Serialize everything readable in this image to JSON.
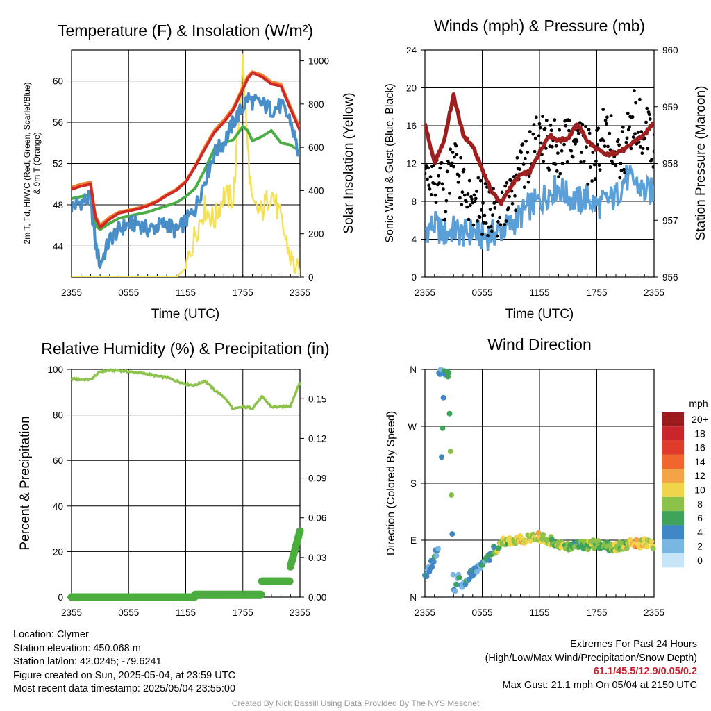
{
  "panels": {
    "temperature": {
      "title": "Temperature (F) & Insolation (W/m²)",
      "xlabel": "Time (UTC)",
      "ylabel_left_lines": [
        "2m T, Td, HI/WC (Red, Green, Scarlet/Blue)",
        "& 9m T (Orange)"
      ],
      "ylabel_right": "Solar Insolation (Yellow)"
    },
    "winds": {
      "title": "Winds (mph) & Pressure (mb)",
      "xlabel": "Time (UTC)",
      "ylabel_left": "Sonic Wind & Gust (Blue, Black)",
      "ylabel_right": "Station Pressure (Maroon)"
    },
    "humidity": {
      "title": "Relative Humidity (%) & Precipitation (in)",
      "ylabel_left": "Percent & Precipitation"
    },
    "direction": {
      "title": "Wind Direction",
      "ylabel_left": "Direction (Colored By Speed)",
      "legend_title": "mph",
      "legend_labels": [
        "20+",
        "18",
        "16",
        "14",
        "12",
        "10",
        "8",
        "6",
        "4",
        "2",
        "0"
      ],
      "legend_colors": [
        "#9b1b1e",
        "#c9252b",
        "#e13b2c",
        "#f0662e",
        "#f5a347",
        "#f0d44b",
        "#8cc24a",
        "#3fa35a",
        "#3f87c6",
        "#7ab6e2",
        "#c6e6f7"
      ]
    }
  },
  "info": {
    "location": "Location: Clymer",
    "elevation": "Station elevation: 450.068 m",
    "latlon": "Station lat/lon: 42.0245; -79.6241",
    "created": "Figure created on Sun, 2025-05-04, at 23:59 UTC",
    "recent": "Most recent data timestamp: 2025/05/04 23:55:00"
  },
  "extremes": {
    "heading": "Extremes For Past 24 Hours",
    "subheading": "(High/Low/Max Wind/Precipitation/Snow Depth)",
    "values": "61.1/45.5/12.9/0.05/0.2",
    "gust": "Max Gust: 21.1 mph On 05/04 at 2150 UTC"
  },
  "credit": "Created By Nick Bassill Using Data Provided By The NYS Mesonet",
  "colors": {
    "temp": "#d02a26",
    "temp9m": "#f4812f",
    "dewpoint": "#4aad45",
    "windchill": "#4a8ec8",
    "solar": "#f5e05a",
    "wind": "#5b9fd8",
    "gust": "#000000",
    "pressure": "#9e1f1f",
    "rh": "#8dc34b",
    "precip": "#4aad3e"
  },
  "chart_data": [
    {
      "type": "line",
      "title": "Temperature (F) & Insolation (W/m2)",
      "xlabel": "Time (UTC)",
      "x_ticks": [
        "2355",
        "0555",
        "1155",
        "1755",
        "2355"
      ],
      "ylim": [
        41,
        63
      ],
      "y_ticks": [
        44,
        48,
        52,
        56,
        60
      ],
      "y2lim": [
        0,
        1050
      ],
      "y2_ticks": [
        0,
        200,
        400,
        600,
        800,
        1000
      ],
      "x": [
        0,
        1,
        2,
        2.5,
        3,
        4,
        5,
        6,
        7,
        8,
        9,
        10,
        11,
        12,
        13,
        14,
        15,
        16,
        17,
        18,
        18.5,
        19,
        20,
        21,
        22,
        23,
        24
      ],
      "series": [
        {
          "name": "Red",
          "axis": "left",
          "values": [
            49.5,
            49.8,
            50.0,
            46.8,
            45.8,
            46.6,
            47.2,
            47.4,
            47.6,
            47.9,
            48.3,
            48.9,
            49.4,
            50.2,
            51.7,
            53.4,
            55.0,
            56.0,
            57.2,
            59.2,
            60.2,
            60.8,
            60.4,
            59.7,
            59.5,
            57.3,
            55.2
          ]
        },
        {
          "name": "Orange",
          "axis": "left",
          "values": [
            49.7,
            50.0,
            50.2,
            47.0,
            46.0,
            46.8,
            47.3,
            47.5,
            47.7,
            48.0,
            48.4,
            49.0,
            49.5,
            50.3,
            51.8,
            53.6,
            55.2,
            56.2,
            57.4,
            59.4,
            60.4,
            60.9,
            60.6,
            59.9,
            59.7,
            57.5,
            55.4
          ]
        },
        {
          "name": "Green",
          "axis": "left",
          "values": [
            48.6,
            48.8,
            49.0,
            46.0,
            45.6,
            46.2,
            46.7,
            46.9,
            47.1,
            47.3,
            47.6,
            47.9,
            48.2,
            48.8,
            49.6,
            51.4,
            53.4,
            54.0,
            54.3,
            55.6,
            55.2,
            54.2,
            54.6,
            55.2,
            54.0,
            53.8,
            53.2
          ]
        },
        {
          "name": "Blue",
          "axis": "left",
          "values": [
            47.8,
            48.3,
            48.6,
            44.2,
            42.2,
            44.6,
            45.6,
            46.1,
            46.2,
            45.6,
            45.9,
            46.2,
            45.4,
            46.4,
            47.6,
            50.4,
            53.0,
            54.0,
            56.0,
            57.4,
            58.4,
            58.0,
            57.8,
            57.2,
            57.6,
            56.2,
            52.4
          ]
        },
        {
          "name": "Yellow",
          "axis": "right",
          "values": [
            0,
            0,
            0,
            0,
            0,
            0,
            0,
            0,
            0,
            0,
            0,
            0,
            0,
            40,
            200,
            320,
            260,
            380,
            360,
            1000,
            600,
            320,
            300,
            400,
            260,
            90,
            0
          ]
        }
      ]
    },
    {
      "type": "line",
      "title": "Winds (mph) & Pressure (mb)",
      "xlabel": "Time (UTC)",
      "x_ticks": [
        "2355",
        "0555",
        "1155",
        "1755",
        "2355"
      ],
      "ylim": [
        0,
        24
      ],
      "y_ticks": [
        0,
        4,
        8,
        12,
        16,
        20,
        24
      ],
      "y2lim": [
        956,
        960
      ],
      "y2_ticks": [
        956,
        957,
        958,
        959,
        960
      ],
      "x": [
        0,
        1,
        2,
        3,
        4,
        5,
        6,
        7,
        8,
        9,
        10,
        11,
        12,
        13,
        14,
        15,
        16,
        17,
        18,
        19,
        20,
        21,
        22,
        23,
        24
      ],
      "series": [
        {
          "name": "Blue",
          "axis": "left",
          "values": [
            5.0,
            5.5,
            4.5,
            5.0,
            4.5,
            4.8,
            4.2,
            4.5,
            5.0,
            5.5,
            6.5,
            7.5,
            8.0,
            9.0,
            9.5,
            8.5,
            8.0,
            8.5,
            7.5,
            8.0,
            8.5,
            10.5,
            10.0,
            9.0,
            9.0
          ]
        },
        {
          "name": "Black",
          "axis": "left",
          "values": [
            9.5,
            11.0,
            8.5,
            13.5,
            10.0,
            7.8,
            7.5,
            7.0,
            7.5,
            8.5,
            11.0,
            13.0,
            14.5,
            14.0,
            13.5,
            15.0,
            15.5,
            12.5,
            13.5,
            15.5,
            13.0,
            14.0,
            17.0,
            15.5,
            13.5
          ]
        },
        {
          "name": "Maroon",
          "axis": "right",
          "values": [
            958.7,
            958.0,
            958.4,
            959.2,
            958.5,
            958.3,
            957.9,
            957.5,
            957.3,
            957.6,
            957.8,
            957.85,
            958.2,
            958.5,
            958.4,
            958.45,
            958.7,
            958.4,
            958.25,
            958.15,
            958.2,
            958.25,
            958.4,
            958.5,
            958.75
          ]
        }
      ]
    },
    {
      "type": "line",
      "title": "Relative Humidity (%) & Precipitation (in)",
      "x_ticks": [
        "2355",
        "0555",
        "1155",
        "1755",
        "2355"
      ],
      "ylim": [
        0,
        100
      ],
      "y_ticks": [
        0,
        20,
        40,
        60,
        80,
        100
      ],
      "y2lim": [
        0,
        0.1722
      ],
      "y2_ticks": [
        0.0,
        0.03,
        0.06,
        0.09,
        0.12,
        0.15
      ],
      "x": [
        0,
        1,
        2,
        3,
        4,
        5,
        6,
        7,
        8,
        9,
        10,
        11,
        12,
        13,
        14,
        15,
        16,
        17,
        18,
        19,
        20,
        21,
        22,
        23,
        24
      ],
      "series": [
        {
          "name": "RH",
          "axis": "left",
          "values": [
            96,
            95.5,
            95.5,
            99,
            99.5,
            99.5,
            99,
            98.5,
            98,
            97,
            96.5,
            95,
            93.5,
            93,
            95,
            91,
            88,
            82.5,
            83.5,
            83,
            88,
            83.5,
            83.5,
            84,
            94.5
          ]
        },
        {
          "name": "Precipitation",
          "axis": "right",
          "values": [
            0,
            0,
            0,
            0,
            0,
            0,
            0,
            0,
            0,
            0,
            0,
            0,
            0,
            0.002,
            0.002,
            0.002,
            0.002,
            0.002,
            0.002,
            0.002,
            0.012,
            0.012,
            0.012,
            0.023,
            0.05
          ]
        }
      ]
    },
    {
      "type": "scatter",
      "title": "Wind Direction",
      "x_ticks": [
        "2355",
        "0555",
        "1155",
        "1755",
        "2355"
      ],
      "y_ticks": [
        "N",
        "E",
        "S",
        "W",
        "N"
      ],
      "ylim": [
        0,
        360
      ],
      "x": [
        0,
        0.5,
        1,
        1.5,
        2,
        2.5,
        3,
        3.5,
        4,
        5,
        6,
        7,
        8,
        9,
        10,
        11,
        12,
        13,
        14,
        15,
        16,
        17,
        18,
        19,
        20,
        21,
        22,
        23,
        24
      ],
      "series": [
        {
          "name": "direction_deg",
          "values": [
            30,
            45,
            65,
            80,
            355,
            350,
            5,
            30,
            20,
            40,
            50,
            70,
            85,
            90,
            90,
            95,
            95,
            90,
            85,
            80,
            85,
            80,
            85,
            80,
            80,
            82,
            85,
            85,
            80
          ]
        },
        {
          "name": "speed_mph",
          "values": [
            4,
            3,
            4,
            3,
            6,
            7,
            4,
            4,
            4,
            4,
            4,
            6,
            8,
            9,
            10,
            9,
            10,
            8,
            8,
            7,
            6,
            8,
            7,
            7,
            8,
            8,
            12,
            10,
            9
          ]
        }
      ]
    }
  ]
}
